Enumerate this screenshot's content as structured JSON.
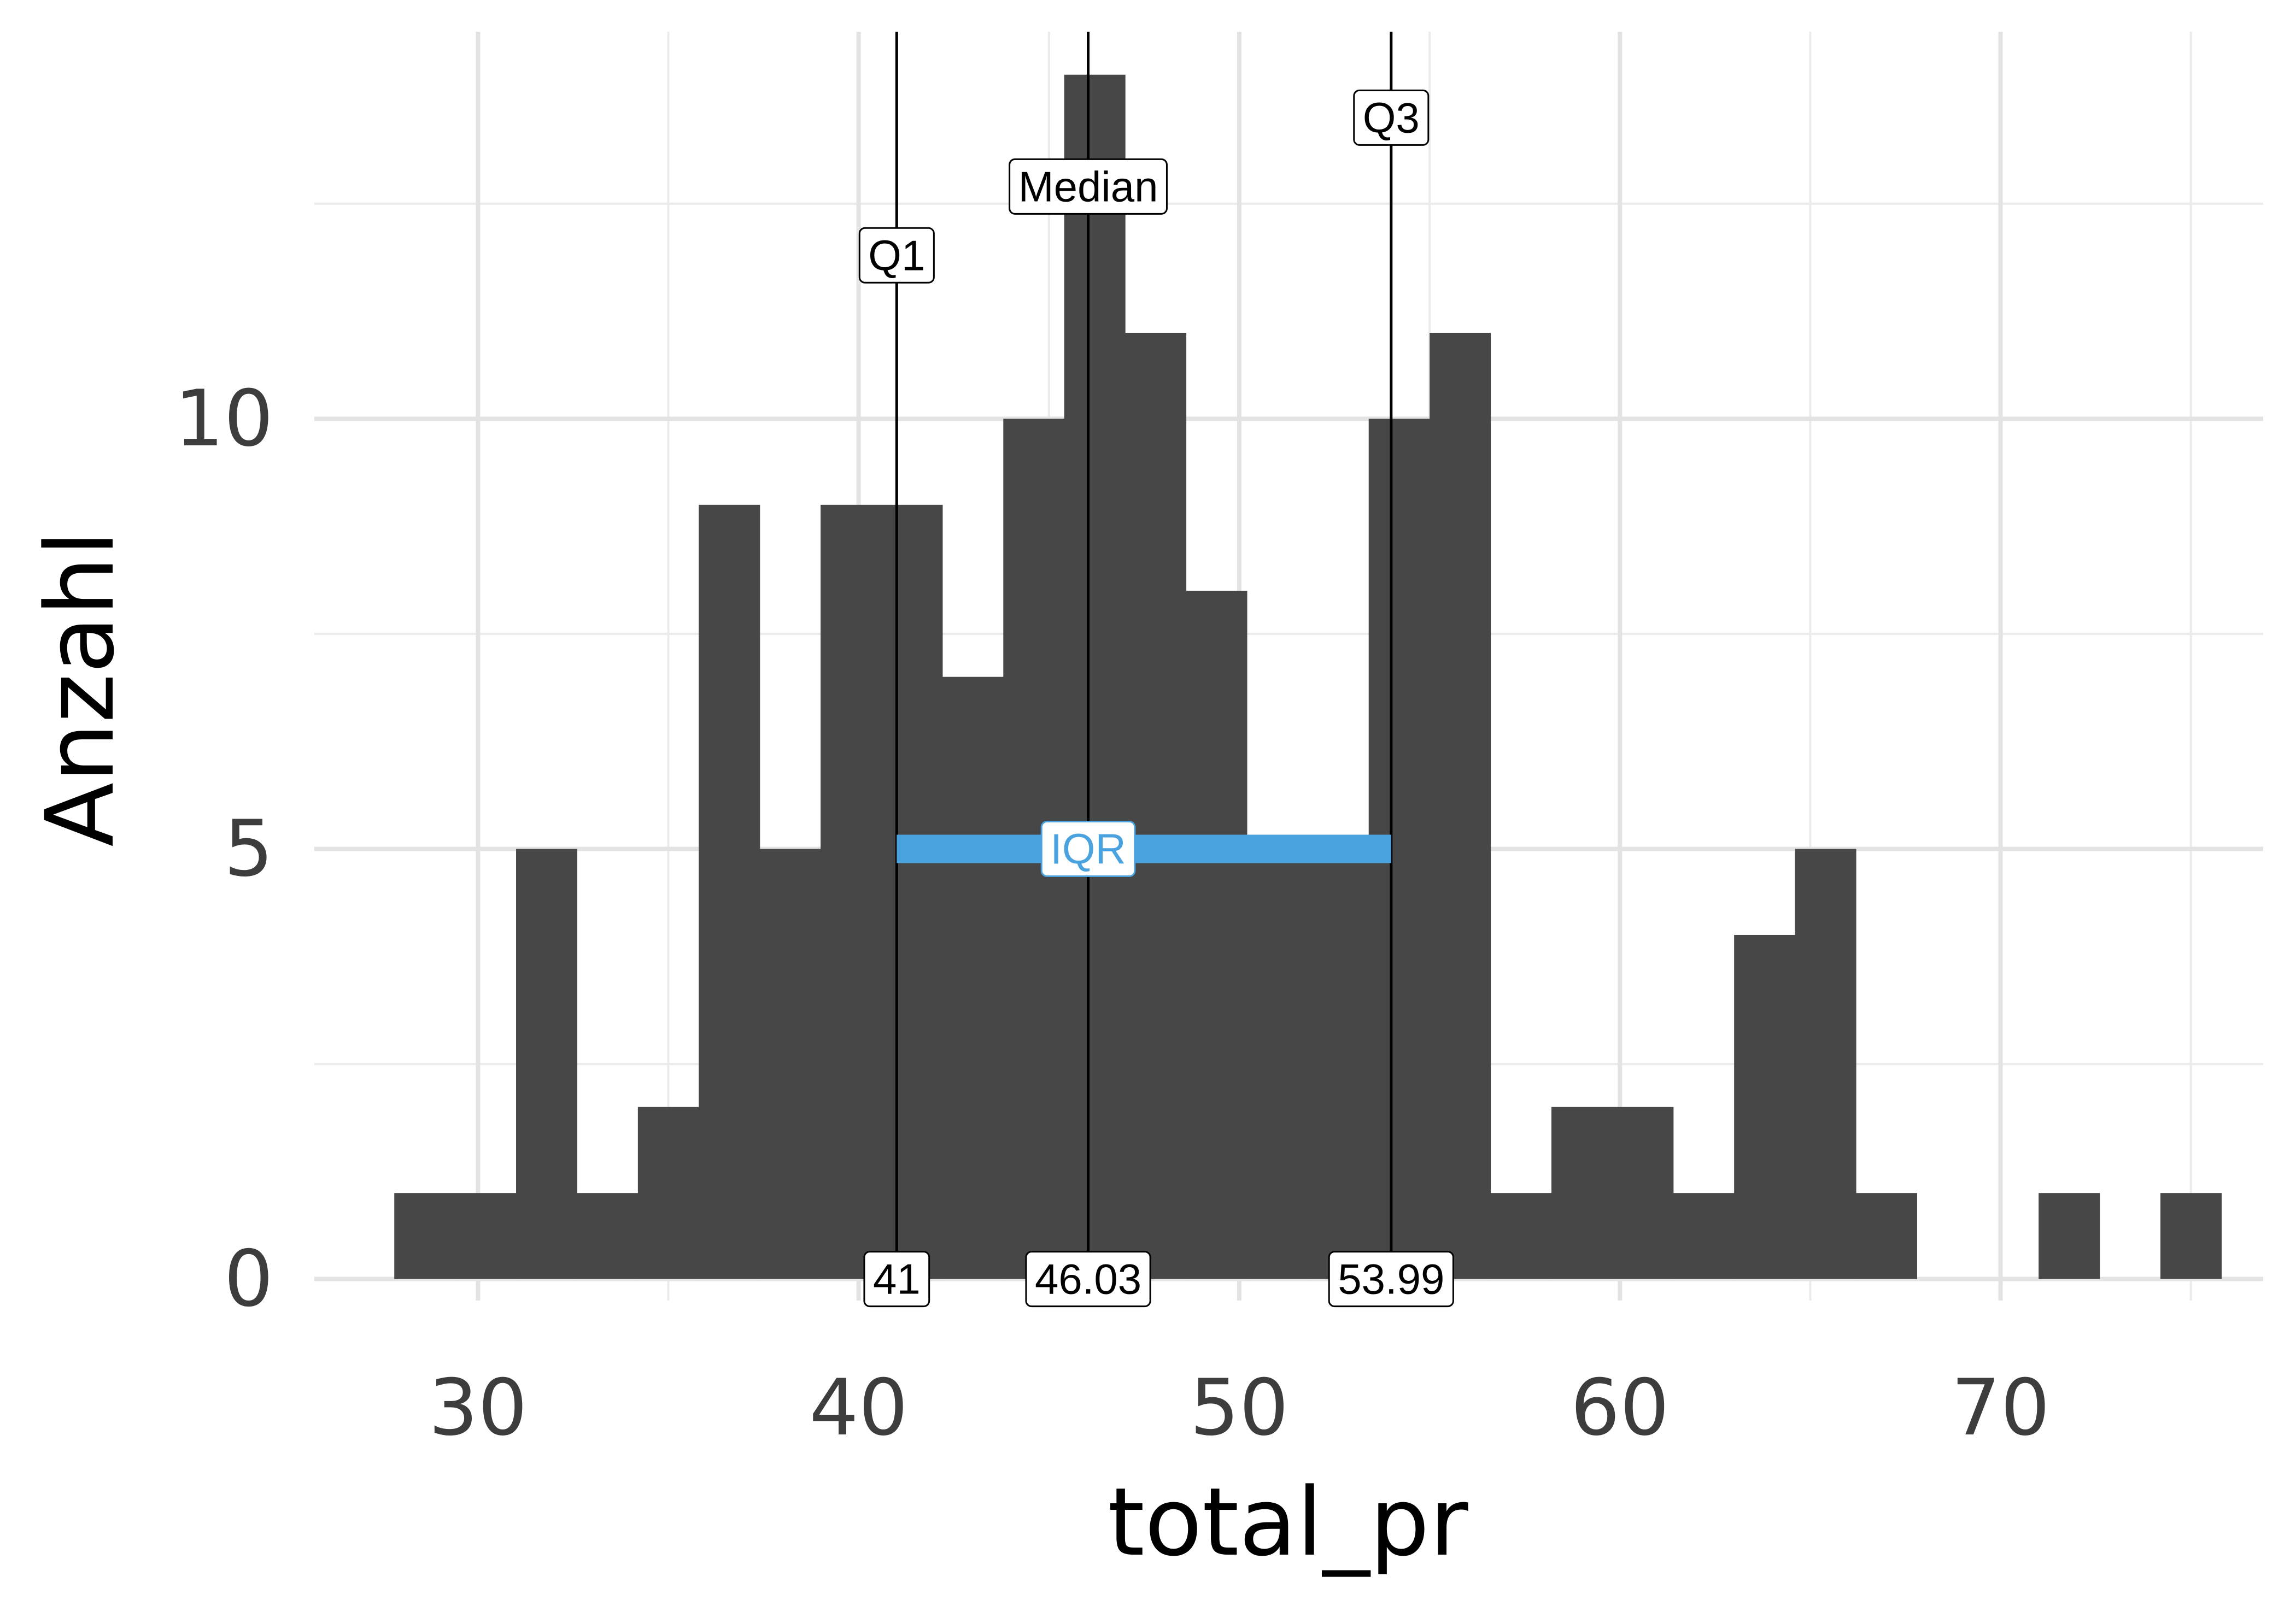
{
  "chart_data": {
    "type": "bar",
    "xlabel": "total_pr",
    "ylabel": "Anzahl",
    "xlim": [
      25.7,
      76.9
    ],
    "ylim": [
      -0.25,
      14.5
    ],
    "x_ticks": [
      30,
      40,
      50,
      60,
      70
    ],
    "y_ticks": [
      0,
      5,
      10
    ],
    "grid": true,
    "bar_color": "#474747",
    "bin_width": 1.6,
    "bins": [
      {
        "start": 27.8,
        "count": 1
      },
      {
        "start": 29.4,
        "count": 1
      },
      {
        "start": 31.0,
        "count": 5
      },
      {
        "start": 32.6,
        "count": 1
      },
      {
        "start": 34.2,
        "count": 2
      },
      {
        "start": 35.8,
        "count": 9
      },
      {
        "start": 37.4,
        "count": 5
      },
      {
        "start": 39.0,
        "count": 9
      },
      {
        "start": 40.6,
        "count": 9
      },
      {
        "start": 42.2,
        "count": 7
      },
      {
        "start": 43.8,
        "count": 10
      },
      {
        "start": 45.4,
        "count": 14
      },
      {
        "start": 47.0,
        "count": 11
      },
      {
        "start": 48.6,
        "count": 8
      },
      {
        "start": 50.2,
        "count": 5
      },
      {
        "start": 51.8,
        "count": 5
      },
      {
        "start": 53.4,
        "count": 10
      },
      {
        "start": 55.0,
        "count": 11
      },
      {
        "start": 56.6,
        "count": 1
      },
      {
        "start": 58.2,
        "count": 2
      },
      {
        "start": 59.8,
        "count": 2
      },
      {
        "start": 61.4,
        "count": 1
      },
      {
        "start": 63.0,
        "count": 4
      },
      {
        "start": 64.6,
        "count": 5
      },
      {
        "start": 66.2,
        "count": 1
      },
      {
        "start": 67.8,
        "count": 0
      },
      {
        "start": 69.4,
        "count": 0
      },
      {
        "start": 71.0,
        "count": 1
      },
      {
        "start": 72.6,
        "count": 0
      },
      {
        "start": 74.2,
        "count": 1
      }
    ],
    "reference_lines": [
      {
        "name": "Q1",
        "value": 41,
        "value_label": "41",
        "label_y": 11.9
      },
      {
        "name": "Median",
        "value": 46.03,
        "value_label": "46.03",
        "label_y": 12.7
      },
      {
        "name": "Q3",
        "value": 53.99,
        "value_label": "53.99",
        "label_y": 13.5
      }
    ],
    "iqr": {
      "label": "IQR",
      "from": 41,
      "to": 53.99,
      "y": 5,
      "color": "#4aa3df"
    }
  }
}
